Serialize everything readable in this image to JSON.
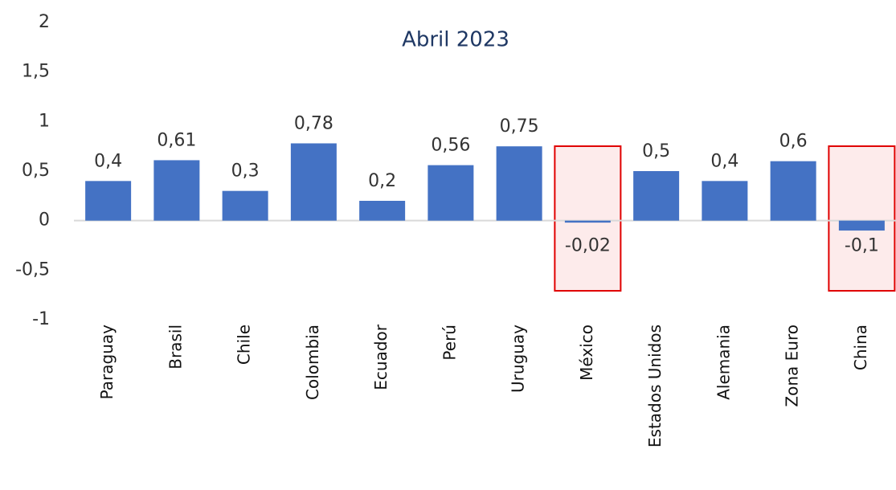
{
  "chart_data": {
    "type": "bar",
    "title": "Abril 2023",
    "categories": [
      "Paraguay",
      "Brasil",
      "Chile",
      "Colombia",
      "Ecuador",
      "Perú",
      "Uruguay",
      "México",
      "Estados Unidos",
      "Alemania",
      "Zona Euro",
      "China"
    ],
    "values": [
      0.4,
      0.61,
      0.3,
      0.78,
      0.2,
      0.56,
      0.75,
      -0.02,
      0.5,
      0.4,
      0.6,
      -0.1
    ],
    "value_labels": [
      "0,4",
      "0,61",
      "0,3",
      "0,78",
      "0,2",
      "0,56",
      "0,75",
      "-0,02",
      "0,5",
      "0,4",
      "0,6",
      "-0,1"
    ],
    "color": "#4472c4",
    "ylim": [
      -1,
      2
    ],
    "yticks": [
      -1,
      {
        "value": -0.5,
        "label": "-0,5"
      },
      0,
      {
        "value": 0.5,
        "label": "0,5"
      },
      1,
      {
        "value": 1.5,
        "label": "1,5"
      },
      2
    ],
    "highlight": [
      7,
      11
    ]
  }
}
